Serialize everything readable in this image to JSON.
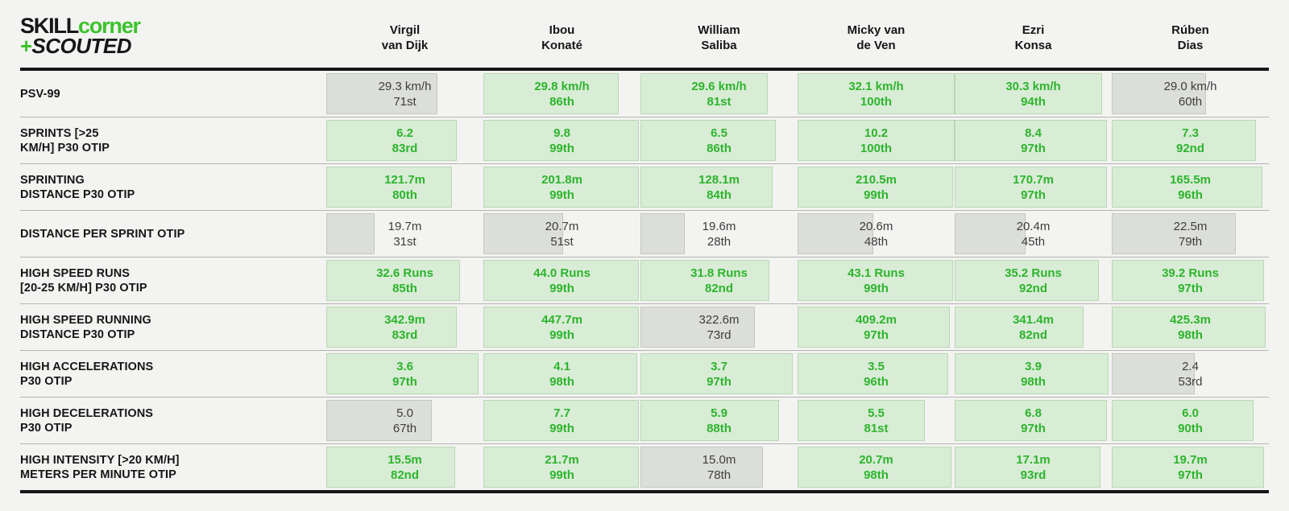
{
  "brand": {
    "skill": "SKILL",
    "corner": "corner",
    "plus": "+",
    "scouted": "SCOUTED"
  },
  "colors": {
    "background": "#f3f3f1",
    "black": "#161616",
    "logo_green": "#3cc32d",
    "green_text": "#2db42d",
    "green_bar": "#d9ecd6",
    "green_bar_border": "#b9d8b4",
    "gray_bar": "#dcdeda",
    "gray_bar_border": "#c5c7c3",
    "gray_text": "#3d3d3d",
    "separator": "#b4b6b2"
  },
  "chart_data": {
    "type": "table",
    "note": "player physical metrics; each cell shows value + percentile, bar width = percentile, green when percentile >= 80",
    "columns": [
      {
        "line1": "Virgil",
        "line2": "van Dijk"
      },
      {
        "line1": "Ibou",
        "line2": "Konaté"
      },
      {
        "line1": "William",
        "line2": "Saliba"
      },
      {
        "line1": "Micky van",
        "line2": "de Ven"
      },
      {
        "line1": "Ezri",
        "line2": "Konsa"
      },
      {
        "line1": "Rúben",
        "line2": "Dias"
      }
    ],
    "rows": [
      {
        "label_lines": [
          "PSV-99"
        ],
        "cells": [
          {
            "value": "29.3 km/h",
            "ordinal": "71st",
            "percentile": 71,
            "green": false
          },
          {
            "value": "29.8 km/h",
            "ordinal": "86th",
            "percentile": 86,
            "green": true
          },
          {
            "value": "29.6 km/h",
            "ordinal": "81st",
            "percentile": 81,
            "green": true
          },
          {
            "value": "32.1 km/h",
            "ordinal": "100th",
            "percentile": 100,
            "green": true
          },
          {
            "value": "30.3 km/h",
            "ordinal": "94th",
            "percentile": 94,
            "green": true
          },
          {
            "value": "29.0 km/h",
            "ordinal": "60th",
            "percentile": 60,
            "green": false
          }
        ]
      },
      {
        "label_lines": [
          "SPRINTS [>25",
          "KM/H] P30 OTIP"
        ],
        "cells": [
          {
            "value": "6.2",
            "ordinal": "83rd",
            "percentile": 83,
            "green": true
          },
          {
            "value": "9.8",
            "ordinal": "99th",
            "percentile": 99,
            "green": true
          },
          {
            "value": "6.5",
            "ordinal": "86th",
            "percentile": 86,
            "green": true
          },
          {
            "value": "10.2",
            "ordinal": "100th",
            "percentile": 100,
            "green": true
          },
          {
            "value": "8.4",
            "ordinal": "97th",
            "percentile": 97,
            "green": true
          },
          {
            "value": "7.3",
            "ordinal": "92nd",
            "percentile": 92,
            "green": true
          }
        ]
      },
      {
        "label_lines": [
          "SPRINTING",
          "DISTANCE P30 OTIP"
        ],
        "cells": [
          {
            "value": "121.7m",
            "ordinal": "80th",
            "percentile": 80,
            "green": true
          },
          {
            "value": "201.8m",
            "ordinal": "99th",
            "percentile": 99,
            "green": true
          },
          {
            "value": "128.1m",
            "ordinal": "84th",
            "percentile": 84,
            "green": true
          },
          {
            "value": "210.5m",
            "ordinal": "99th",
            "percentile": 99,
            "green": true
          },
          {
            "value": "170.7m",
            "ordinal": "97th",
            "percentile": 97,
            "green": true
          },
          {
            "value": "165.5m",
            "ordinal": "96th",
            "percentile": 96,
            "green": true
          }
        ]
      },
      {
        "label_lines": [
          "DISTANCE PER SPRINT OTIP"
        ],
        "cells": [
          {
            "value": "19.7m",
            "ordinal": "31st",
            "percentile": 31,
            "green": false
          },
          {
            "value": "20.7m",
            "ordinal": "51st",
            "percentile": 51,
            "green": false
          },
          {
            "value": "19.6m",
            "ordinal": "28th",
            "percentile": 28,
            "green": false
          },
          {
            "value": "20.6m",
            "ordinal": "48th",
            "percentile": 48,
            "green": false
          },
          {
            "value": "20.4m",
            "ordinal": "45th",
            "percentile": 45,
            "green": false
          },
          {
            "value": "22.5m",
            "ordinal": "79th",
            "percentile": 79,
            "green": false
          }
        ]
      },
      {
        "label_lines": [
          "HIGH SPEED RUNS",
          "[20-25 KM/H] P30 OTIP"
        ],
        "cells": [
          {
            "value": "32.6 Runs",
            "ordinal": "85th",
            "percentile": 85,
            "green": true
          },
          {
            "value": "44.0 Runs",
            "ordinal": "99th",
            "percentile": 99,
            "green": true
          },
          {
            "value": "31.8 Runs",
            "ordinal": "82nd",
            "percentile": 82,
            "green": true
          },
          {
            "value": "43.1 Runs",
            "ordinal": "99th",
            "percentile": 99,
            "green": true
          },
          {
            "value": "35.2 Runs",
            "ordinal": "92nd",
            "percentile": 92,
            "green": true
          },
          {
            "value": "39.2 Runs",
            "ordinal": "97th",
            "percentile": 97,
            "green": true
          }
        ]
      },
      {
        "label_lines": [
          "HIGH SPEED RUNNING",
          "DISTANCE P30 OTIP"
        ],
        "cells": [
          {
            "value": "342.9m",
            "ordinal": "83rd",
            "percentile": 83,
            "green": true
          },
          {
            "value": "447.7m",
            "ordinal": "99th",
            "percentile": 99,
            "green": true
          },
          {
            "value": "322.6m",
            "ordinal": "73rd",
            "percentile": 73,
            "green": false
          },
          {
            "value": "409.2m",
            "ordinal": "97th",
            "percentile": 97,
            "green": true
          },
          {
            "value": "341.4m",
            "ordinal": "82nd",
            "percentile": 82,
            "green": true
          },
          {
            "value": "425.3m",
            "ordinal": "98th",
            "percentile": 98,
            "green": true
          }
        ]
      },
      {
        "label_lines": [
          "HIGH ACCELERATIONS",
          "P30 OTIP"
        ],
        "cells": [
          {
            "value": "3.6",
            "ordinal": "97th",
            "percentile": 97,
            "green": true
          },
          {
            "value": "4.1",
            "ordinal": "98th",
            "percentile": 98,
            "green": true
          },
          {
            "value": "3.7",
            "ordinal": "97th",
            "percentile": 97,
            "green": true
          },
          {
            "value": "3.5",
            "ordinal": "96th",
            "percentile": 96,
            "green": true
          },
          {
            "value": "3.9",
            "ordinal": "98th",
            "percentile": 98,
            "green": true
          },
          {
            "value": "2.4",
            "ordinal": "53rd",
            "percentile": 53,
            "green": false
          }
        ]
      },
      {
        "label_lines": [
          "HIGH DECELERATIONS",
          "P30 OTIP"
        ],
        "cells": [
          {
            "value": "5.0",
            "ordinal": "67th",
            "percentile": 67,
            "green": false
          },
          {
            "value": "7.7",
            "ordinal": "99th",
            "percentile": 99,
            "green": true
          },
          {
            "value": "5.9",
            "ordinal": "88th",
            "percentile": 88,
            "green": true
          },
          {
            "value": "5.5",
            "ordinal": "81st",
            "percentile": 81,
            "green": true
          },
          {
            "value": "6.8",
            "ordinal": "97th",
            "percentile": 97,
            "green": true
          },
          {
            "value": "6.0",
            "ordinal": "90th",
            "percentile": 90,
            "green": true
          }
        ]
      },
      {
        "label_lines": [
          "HIGH INTENSITY [>20 KM/H]",
          "METERS PER MINUTE OTIP"
        ],
        "cells": [
          {
            "value": "15.5m",
            "ordinal": "82nd",
            "percentile": 82,
            "green": true
          },
          {
            "value": "21.7m",
            "ordinal": "99th",
            "percentile": 99,
            "green": true
          },
          {
            "value": "15.0m",
            "ordinal": "78th",
            "percentile": 78,
            "green": false
          },
          {
            "value": "20.7m",
            "ordinal": "98th",
            "percentile": 98,
            "green": true
          },
          {
            "value": "17.1m",
            "ordinal": "93rd",
            "percentile": 93,
            "green": true
          },
          {
            "value": "19.7m",
            "ordinal": "97th",
            "percentile": 97,
            "green": true
          }
        ]
      }
    ]
  }
}
